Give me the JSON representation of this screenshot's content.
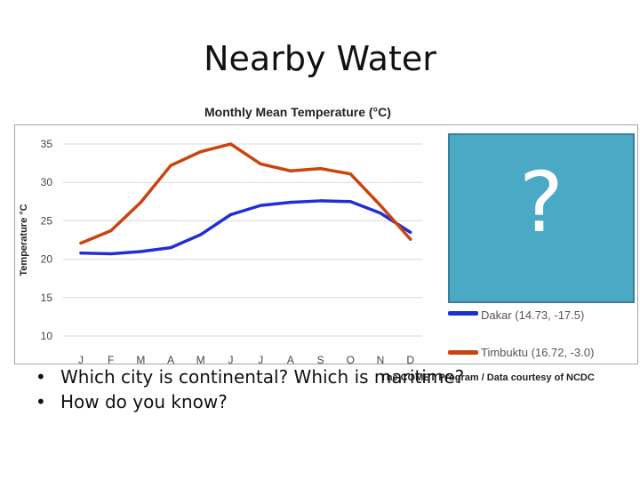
{
  "slide": {
    "title": "Nearby Water",
    "question_mark": "?",
    "bullets": [
      "Which city is continental? Which is maritime?",
      "How do you know?"
    ],
    "bullet_glyph": "•"
  },
  "chart_data": {
    "type": "line",
    "title": "Monthly Mean Temperature (°C)",
    "ylabel": "Temperature °C",
    "xlabel": "",
    "categories": [
      "J",
      "F",
      "M",
      "A",
      "M",
      "J",
      "J",
      "A",
      "S",
      "O",
      "N",
      "D"
    ],
    "ylim": [
      10,
      35
    ],
    "yticks": [
      10,
      15,
      20,
      25,
      30,
      35
    ],
    "grid": true,
    "legend_position": "right",
    "series": [
      {
        "name": "Dakar (14.73, -17.5)",
        "color": "#1f2fd6",
        "values": [
          20.8,
          20.7,
          21.0,
          21.5,
          23.2,
          25.8,
          27.0,
          27.4,
          27.6,
          27.5,
          26.0,
          23.5
        ]
      },
      {
        "name": "Timbuktu (16.72, -3.0)",
        "color": "#c9440e",
        "values": [
          22.1,
          23.7,
          27.4,
          32.2,
          34.0,
          35.0,
          32.4,
          31.5,
          31.8,
          31.1,
          27.0,
          22.6
        ]
      }
    ],
    "credit": "The COMET Program / Data courtesy of NCDC"
  }
}
